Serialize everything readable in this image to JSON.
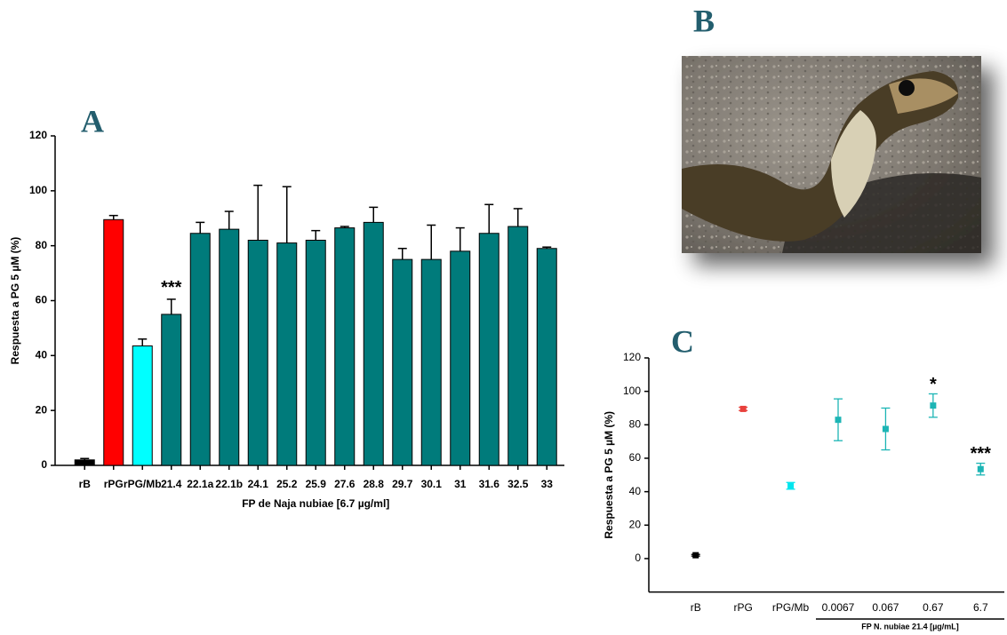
{
  "chart_data": [
    {
      "type": "bar",
      "panel": "A",
      "categories": [
        "rB",
        "rPG",
        "rPG/Mb",
        "21.4",
        "22.1a",
        "22.1b",
        "24.1",
        "25.2",
        "25.9",
        "27.6",
        "28.8",
        "29.7",
        "30.1",
        "31",
        "31.6",
        "32.5",
        "33"
      ],
      "values": [
        2,
        89.5,
        43.5,
        55,
        84.5,
        86,
        82,
        81,
        82,
        86.5,
        88.5,
        75,
        75,
        78,
        84.5,
        87,
        79
      ],
      "errors": [
        0.5,
        1.5,
        2.5,
        5.5,
        4,
        6.5,
        20,
        20.5,
        3.5,
        0.5,
        5.5,
        4,
        12.5,
        8.5,
        10.5,
        6.5,
        0.5
      ],
      "colors": [
        "#000000",
        "#ff0000",
        "#00ffff",
        "#007b7b",
        "#007b7b",
        "#007b7b",
        "#007b7b",
        "#007b7b",
        "#007b7b",
        "#007b7b",
        "#007b7b",
        "#007b7b",
        "#007b7b",
        "#007b7b",
        "#007b7b",
        "#007b7b",
        "#007b7b"
      ],
      "ylim": [
        0,
        120
      ],
      "yticks": [
        0,
        20,
        40,
        60,
        80,
        100,
        120
      ],
      "ylabel": "Respuesta a PG  5 µM  (%)",
      "xlabel": "FP de Naja nubiae [6.7 µg/ml]",
      "annotations": [
        {
          "text": "***",
          "category": "21.4",
          "color": "#000000"
        }
      ]
    },
    {
      "type": "scatter",
      "panel": "C",
      "categories": [
        "rB",
        "rPG",
        "rPG/Mb",
        "0.0067",
        "0.067",
        "0.67",
        "6.7"
      ],
      "values": [
        2,
        89.5,
        43.5,
        83,
        77.5,
        91.5,
        53.5
      ],
      "errors": [
        0.5,
        1,
        2,
        12.5,
        12.5,
        7,
        3.5
      ],
      "colors": [
        "#000000",
        "#e8413c",
        "#00e5ee",
        "#1cb5b5",
        "#1cb5b5",
        "#1cb5b5",
        "#1cb5b5"
      ],
      "ylim": [
        -20,
        120
      ],
      "yticks": [
        0,
        20,
        40,
        60,
        80,
        100,
        120
      ],
      "ylabel": "Respuesta a PG  5 µM  (%)",
      "xlabel": "FP N. nubiae 21.4 [µg/mL]",
      "annotations": [
        {
          "text": "*",
          "category": "0.67",
          "color": "#ff00ff"
        },
        {
          "text": "***",
          "category": "6.7",
          "color": "#000000"
        }
      ]
    }
  ],
  "photo": {
    "panel": "B"
  }
}
